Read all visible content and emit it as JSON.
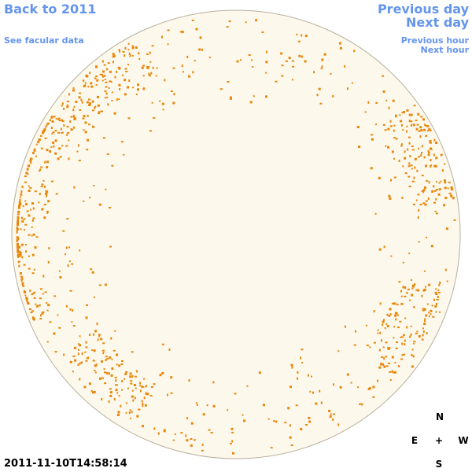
{
  "links": {
    "back": "Back to 2011",
    "facular": "See facular data",
    "previous_day": "Previous day",
    "next_day": "Next day",
    "previous_hour": "Previous hour",
    "next_hour": "Next hour"
  },
  "timestamp": "2011-11-10T14:58:14",
  "compass": {
    "north": "N",
    "east": "E",
    "center": "+",
    "west": "W",
    "south": "S"
  }
}
